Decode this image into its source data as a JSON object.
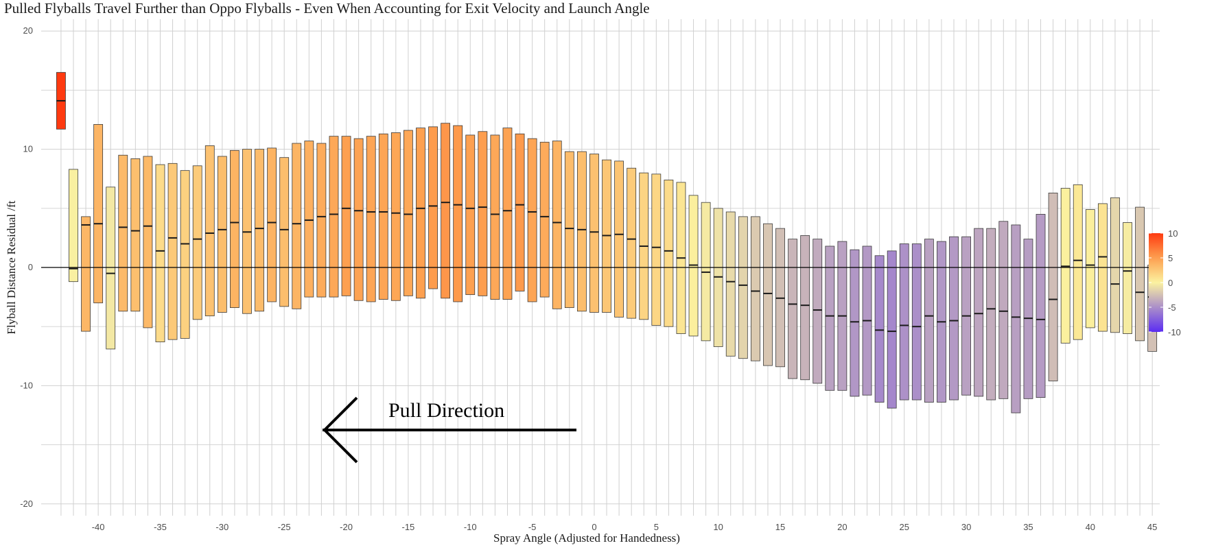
{
  "chart_data": {
    "type": "bar",
    "title": "Pulled Flyballs Travel Further than Oppo Flyballs - Even When Accounting for Exit Velocity and Launch Angle",
    "xlabel": "Spray Angle (Adjusted for Handedness)",
    "ylabel": "Flyball Distance Residual /ft",
    "xlim": [
      -44,
      45
    ],
    "ylim": [
      -21,
      21
    ],
    "x_ticks": [
      -40,
      -35,
      -30,
      -25,
      -20,
      -15,
      -10,
      -5,
      0,
      5,
      10,
      15,
      20,
      25,
      30,
      35,
      40,
      45
    ],
    "y_ticks": [
      -20,
      -10,
      0,
      10,
      20
    ],
    "grid": true,
    "legend": {
      "position": "right",
      "ticks": [
        10,
        5,
        0,
        -5,
        -10
      ],
      "range": [
        -10,
        10
      ],
      "colors": {
        "low": "#5b2cf2",
        "mid": "#fbf2a0",
        "high": "#fe3a10"
      }
    },
    "annotation": {
      "text": "Pull Direction",
      "arrow": "left"
    },
    "x": [
      -43,
      -42,
      -41,
      -40,
      -39,
      -38,
      -37,
      -36,
      -35,
      -34,
      -33,
      -32,
      -31,
      -30,
      -29,
      -28,
      -27,
      -26,
      -25,
      -24,
      -23,
      -22,
      -21,
      -20,
      -19,
      -18,
      -17,
      -16,
      -15,
      -14,
      -13,
      -12,
      -11,
      -10,
      -9,
      -8,
      -7,
      -6,
      -5,
      -4,
      -3,
      -2,
      -1,
      0,
      1,
      2,
      3,
      4,
      5,
      6,
      7,
      8,
      9,
      10,
      11,
      12,
      13,
      14,
      15,
      16,
      17,
      18,
      19,
      20,
      21,
      22,
      23,
      24,
      25,
      26,
      27,
      28,
      29,
      30,
      31,
      32,
      33,
      34,
      35,
      36,
      37,
      38,
      39,
      40,
      41,
      42,
      43,
      44,
      45
    ],
    "upper": [
      16.5,
      8.3,
      4.3,
      12.1,
      6.8,
      9.5,
      9.2,
      9.4,
      8.7,
      8.8,
      8.2,
      8.6,
      10.3,
      9.4,
      9.9,
      10.0,
      10.0,
      10.1,
      9.3,
      10.5,
      10.7,
      10.5,
      11.1,
      11.1,
      10.9,
      11.1,
      11.3,
      11.4,
      11.6,
      11.8,
      11.9,
      12.2,
      12.0,
      11.2,
      11.5,
      11.2,
      11.8,
      11.3,
      10.9,
      10.6,
      10.7,
      9.8,
      9.8,
      9.6,
      9.1,
      9.0,
      8.4,
      8.0,
      7.9,
      7.4,
      7.2,
      6.1,
      5.5,
      5.0,
      4.7,
      4.3,
      4.3,
      3.7,
      3.3,
      2.4,
      2.7,
      2.4,
      1.8,
      2.2,
      1.5,
      1.8,
      1.0,
      1.4,
      2.0,
      2.0,
      2.4,
      2.2,
      2.6,
      2.6,
      3.3,
      3.3,
      3.9,
      3.6,
      2.4,
      4.5,
      6.3,
      6.7,
      7.0,
      4.9,
      5.4,
      5.9,
      3.8,
      5.1,
      0.2
    ],
    "lower": [
      11.7,
      -1.2,
      -5.4,
      -3.0,
      -6.9,
      -3.7,
      -3.7,
      -5.1,
      -6.3,
      -6.1,
      -6.0,
      -4.4,
      -4.1,
      -3.8,
      -3.4,
      -3.9,
      -3.7,
      -2.9,
      -3.3,
      -3.5,
      -2.5,
      -2.5,
      -2.5,
      -2.4,
      -2.8,
      -2.9,
      -2.7,
      -2.8,
      -2.4,
      -2.6,
      -1.8,
      -2.6,
      -2.9,
      -2.3,
      -2.4,
      -2.7,
      -2.7,
      -2.0,
      -2.9,
      -2.5,
      -3.5,
      -3.4,
      -3.7,
      -3.8,
      -3.8,
      -4.2,
      -4.3,
      -4.4,
      -4.9,
      -5.0,
      -5.6,
      -5.8,
      -6.2,
      -6.7,
      -7.5,
      -7.7,
      -7.9,
      -8.3,
      -8.4,
      -9.4,
      -9.5,
      -9.8,
      -10.4,
      -10.4,
      -10.9,
      -10.8,
      -11.4,
      -11.9,
      -11.2,
      -11.2,
      -11.4,
      -11.4,
      -11.2,
      -10.8,
      -10.9,
      -11.2,
      -11.1,
      -12.3,
      -11.1,
      -11.0,
      -9.6,
      -6.4,
      -6.1,
      -5.1,
      -5.4,
      -5.5,
      -5.6,
      -6.2,
      -7.1
    ],
    "median": [
      14.1,
      -0.1,
      3.6,
      3.7,
      -0.5,
      3.4,
      3.1,
      3.5,
      1.4,
      2.5,
      2.0,
      2.4,
      2.9,
      3.2,
      3.8,
      3.0,
      3.3,
      3.8,
      3.2,
      3.7,
      4.0,
      4.3,
      4.5,
      5.0,
      4.8,
      4.7,
      4.7,
      4.6,
      4.5,
      5.0,
      5.2,
      5.5,
      5.3,
      5.0,
      5.1,
      4.5,
      4.8,
      5.3,
      4.7,
      4.3,
      3.8,
      3.3,
      3.2,
      3.0,
      2.7,
      2.8,
      2.4,
      1.8,
      1.7,
      1.4,
      0.8,
      0.2,
      -0.4,
      -0.8,
      -1.2,
      -1.5,
      -2.0,
      -2.2,
      -2.6,
      -3.1,
      -3.2,
      -3.6,
      -4.1,
      -4.1,
      -4.6,
      -4.5,
      -5.3,
      -5.4,
      -4.9,
      -5.0,
      -4.1,
      -4.6,
      -4.5,
      -4.1,
      -3.9,
      -3.5,
      -3.7,
      -4.2,
      -4.3,
      -4.4,
      -2.7,
      0.1,
      0.6,
      0.2,
      0.9,
      -1.4,
      -0.3,
      -2.1,
      -2.5
    ],
    "series_color_value": [
      14.1,
      -0.1,
      3.6,
      3.7,
      -0.5,
      3.4,
      3.1,
      3.5,
      1.4,
      2.5,
      2.0,
      2.4,
      2.9,
      3.2,
      3.8,
      3.0,
      3.3,
      3.8,
      3.2,
      3.7,
      4.0,
      4.3,
      4.5,
      5.0,
      4.8,
      4.7,
      4.7,
      4.6,
      4.5,
      5.0,
      5.2,
      5.5,
      5.3,
      5.0,
      5.1,
      4.5,
      4.8,
      5.3,
      4.7,
      4.3,
      3.8,
      3.3,
      3.2,
      3.0,
      2.7,
      2.8,
      2.4,
      1.8,
      1.7,
      1.4,
      0.8,
      0.2,
      -0.4,
      -0.8,
      -1.2,
      -1.5,
      -2.0,
      -2.2,
      -2.6,
      -3.1,
      -3.2,
      -3.6,
      -4.1,
      -4.1,
      -4.6,
      -4.5,
      -5.3,
      -5.4,
      -4.9,
      -5.0,
      -4.1,
      -4.6,
      -4.5,
      -4.1,
      -3.9,
      -3.5,
      -3.7,
      -4.2,
      -4.3,
      -4.4,
      -2.7,
      0.1,
      0.6,
      0.2,
      0.9,
      -1.4,
      -0.3,
      -2.1,
      -2.5
    ]
  }
}
